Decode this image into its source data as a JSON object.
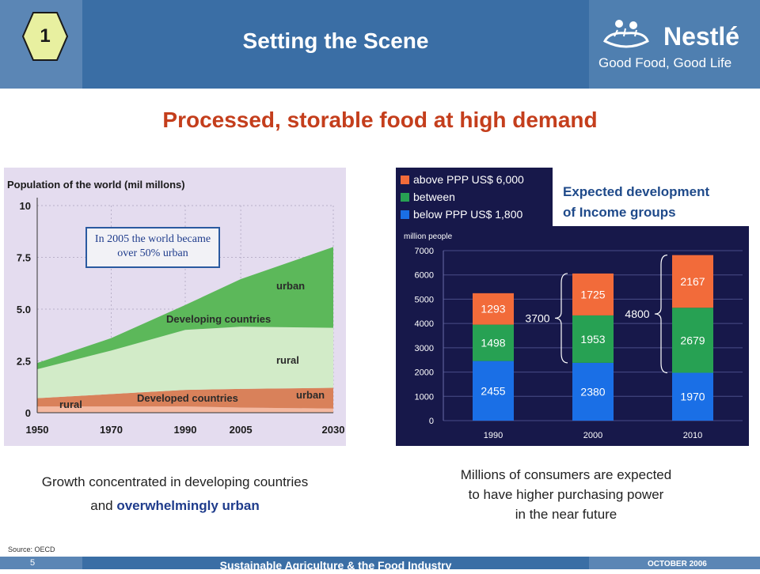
{
  "header": {
    "section_number": "1",
    "title": "Setting the Scene",
    "brand": "Nestlé",
    "tagline": "Good Food, Good Life"
  },
  "subtitle": "Processed, storable food at high demand",
  "chart_data": [
    {
      "type": "area",
      "title": "Population of the world (mil millons)",
      "x": [
        1950,
        1970,
        1990,
        2005,
        2030
      ],
      "xlim": [
        1950,
        2030
      ],
      "ylim": [
        0,
        10
      ],
      "yticks": [
        "0",
        "2.5",
        "5.0",
        "7.5",
        "10"
      ],
      "xticks": [
        "1950",
        "1970",
        "1990",
        "2005",
        "2030"
      ],
      "series": [
        {
          "name": "Developed countries rural",
          "values": [
            0.3,
            0.3,
            0.3,
            0.25,
            0.2
          ],
          "color": "#f4b8a0"
        },
        {
          "name": "Developed countries urban",
          "values": [
            0.4,
            0.6,
            0.8,
            0.9,
            1.0
          ],
          "color": "#d9815a"
        },
        {
          "name": "Developing countries rural",
          "values": [
            1.4,
            2.1,
            2.9,
            3.0,
            2.9
          ],
          "color": "#d2ebc8"
        },
        {
          "name": "Developing countries urban",
          "values": [
            0.3,
            0.6,
            1.2,
            2.3,
            3.9
          ],
          "color": "#5cb85a"
        }
      ],
      "annotation": "In 2005 the world became over 50% urban",
      "labels": {
        "urban_developing": "urban",
        "developing": "Developing countries",
        "rural_developing": "rural",
        "urban_developed": "urban",
        "developed": "Developed countries",
        "rural_developed": "rural"
      }
    },
    {
      "type": "bar",
      "stacked": true,
      "ylabel": "million people",
      "categories": [
        "1990",
        "2000",
        "2010"
      ],
      "ylim": [
        0,
        7000
      ],
      "yticks": [
        "0",
        "1000",
        "2000",
        "3000",
        "4000",
        "5000",
        "6000",
        "7000"
      ],
      "series": [
        {
          "name": "below PPP US$ 1,800",
          "values": [
            2455,
            2380,
            1970
          ],
          "color": "#1a6fe6"
        },
        {
          "name": "between",
          "values": [
            1498,
            1953,
            2679
          ],
          "color": "#27a153"
        },
        {
          "name": "above PPP US$ 6,000",
          "values": [
            1293,
            1725,
            2167
          ],
          "color": "#f26b3a"
        }
      ],
      "brace_labels": [
        "3700",
        "4800"
      ],
      "legend": "top-left"
    }
  ],
  "income_label": [
    "Expected development",
    "of Income groups"
  ],
  "captions": {
    "left_line1": "Growth concentrated in developing countries",
    "left_line2_pre": "and ",
    "left_line2_hl": "overwhelmingly urban",
    "right_line1": "Millions of consumers are expected",
    "right_line2": "to have higher purchasing power",
    "right_line3": "in the near future"
  },
  "source": "Source: OECD",
  "footer": {
    "page": "5",
    "text": "Sustainable Agriculture & the Food Industry",
    "date": "OCTOBER 2006"
  }
}
